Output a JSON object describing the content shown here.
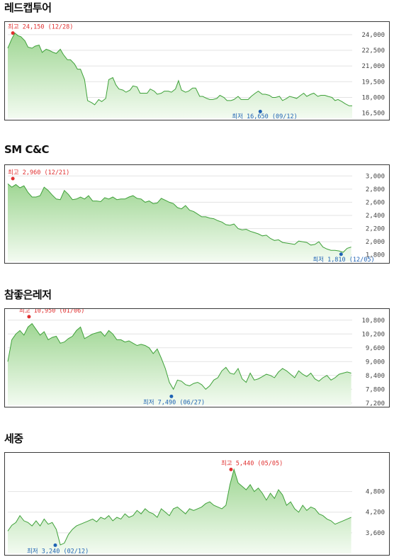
{
  "colors": {
    "line": "#3fa13a",
    "fill_top": "#9fd693",
    "fill_bottom": "#f3fbf1",
    "grid": "#e3e3e3",
    "high": "#e03131",
    "low": "#1f63b4"
  },
  "chart_data": [
    {
      "type": "area",
      "title": "레드캡투어",
      "yticks": [
        24000,
        22500,
        21000,
        19500,
        18000,
        16500
      ],
      "ylim": [
        16000,
        24800
      ],
      "grid": true,
      "high_label": "최고 24,150 (12/28)",
      "high": {
        "x": 5,
        "y": 24150
      },
      "low_label": "최저 16,650 (09/12)",
      "low": {
        "x": 250,
        "y": 16650
      },
      "x": [
        0,
        4,
        7,
        10,
        13,
        17,
        20,
        24,
        27,
        31,
        34,
        38,
        41,
        45,
        48,
        52,
        55,
        59,
        62,
        66,
        69,
        72,
        76,
        79,
        83,
        86,
        90,
        93,
        97,
        100,
        104,
        107,
        110,
        114,
        117,
        121,
        124,
        128,
        131,
        135,
        138,
        141,
        145,
        148,
        152,
        155,
        159,
        162,
        166,
        169,
        172,
        176,
        179,
        183,
        186,
        190,
        193,
        197,
        200,
        203,
        207,
        210,
        214,
        217,
        221,
        224,
        228,
        231,
        234,
        238,
        241,
        245,
        248,
        252,
        255,
        259,
        262,
        265,
        269,
        272,
        276,
        279,
        283,
        286,
        290,
        293,
        296,
        300,
        303,
        307,
        310,
        314,
        317,
        321,
        324,
        327,
        331,
        334,
        338,
        341
      ],
      "y": [
        22700,
        23600,
        24150,
        23900,
        23800,
        23400,
        22800,
        22700,
        22900,
        23000,
        22300,
        22600,
        22500,
        22300,
        22200,
        22600,
        22100,
        21600,
        21600,
        21200,
        20700,
        20700,
        19700,
        17700,
        17500,
        17300,
        17800,
        17600,
        17900,
        19700,
        19900,
        19200,
        18800,
        18700,
        18500,
        18700,
        19100,
        19000,
        18400,
        18400,
        18400,
        18800,
        18600,
        18300,
        18400,
        18600,
        18600,
        18500,
        18800,
        19600,
        18700,
        18500,
        18600,
        18900,
        18900,
        18100,
        18100,
        17900,
        17800,
        17800,
        17900,
        18200,
        18000,
        17700,
        17700,
        17800,
        18100,
        17800,
        17800,
        17800,
        18100,
        18400,
        18600,
        18300,
        18300,
        18200,
        18000,
        18000,
        18100,
        17700,
        17900,
        18100,
        18000,
        17900,
        18200,
        18400,
        18100,
        18300,
        18400,
        18100,
        18200,
        18200,
        18100,
        18000,
        17700,
        17800,
        17600,
        17400,
        17200,
        17200
      ]
    },
    {
      "type": "area",
      "title": "SM C&C",
      "yticks": [
        3000,
        2800,
        2600,
        2400,
        2200,
        2000,
        1800
      ],
      "ylim": [
        1700,
        3100
      ],
      "grid": true,
      "high_label": "최고 2,960 (12/21)",
      "high": {
        "x": 5,
        "y": 2960
      },
      "low_label": "최저 1,810 (12/05)",
      "low": {
        "x": 330,
        "y": 1810
      },
      "x": [
        0,
        4,
        8,
        12,
        16,
        20,
        24,
        28,
        32,
        36,
        40,
        44,
        48,
        52,
        56,
        60,
        64,
        68,
        72,
        76,
        80,
        84,
        88,
        92,
        96,
        100,
        104,
        108,
        112,
        116,
        120,
        124,
        128,
        132,
        136,
        140,
        144,
        148,
        152,
        156,
        160,
        164,
        168,
        172,
        176,
        180,
        184,
        188,
        192,
        196,
        200,
        204,
        208,
        212,
        216,
        220,
        224,
        228,
        232,
        236,
        240,
        244,
        248,
        252,
        256,
        260,
        264,
        268,
        272,
        276,
        280,
        284,
        288,
        292,
        296,
        300,
        304,
        308,
        312,
        316,
        320,
        324,
        328,
        332,
        336,
        340
      ],
      "y": [
        2880,
        2830,
        2870,
        2820,
        2850,
        2750,
        2680,
        2680,
        2700,
        2830,
        2780,
        2710,
        2650,
        2640,
        2780,
        2720,
        2640,
        2650,
        2680,
        2650,
        2700,
        2620,
        2620,
        2610,
        2670,
        2650,
        2680,
        2640,
        2650,
        2650,
        2680,
        2700,
        2660,
        2650,
        2600,
        2620,
        2580,
        2590,
        2660,
        2630,
        2600,
        2580,
        2520,
        2500,
        2550,
        2480,
        2460,
        2420,
        2380,
        2380,
        2360,
        2350,
        2320,
        2300,
        2260,
        2250,
        2270,
        2200,
        2180,
        2190,
        2160,
        2140,
        2120,
        2090,
        2100,
        2050,
        2020,
        2030,
        1990,
        1980,
        1970,
        1960,
        2010,
        2000,
        1990,
        1950,
        1960,
        2000,
        1920,
        1890,
        1870,
        1870,
        1860,
        1840,
        1900,
        1920
      ]
    },
    {
      "type": "area",
      "title": "참좋은레저",
      "yticks": [
        10800,
        10200,
        9600,
        9000,
        8400,
        7800,
        7200
      ],
      "ylim": [
        7100,
        11100
      ],
      "grid": true,
      "high_label": "최고 10,950 (01/06)",
      "high": {
        "x": 21,
        "y": 10950
      },
      "low_label": "최저 7,490 (06/27)",
      "low": {
        "x": 162,
        "y": 7490
      },
      "x": [
        0,
        4,
        8,
        12,
        16,
        20,
        24,
        28,
        32,
        36,
        40,
        44,
        48,
        52,
        56,
        60,
        64,
        68,
        72,
        76,
        80,
        84,
        88,
        92,
        96,
        100,
        104,
        108,
        112,
        116,
        120,
        124,
        128,
        132,
        136,
        140,
        144,
        148,
        152,
        156,
        160,
        164,
        168,
        172,
        176,
        180,
        184,
        188,
        192,
        196,
        200,
        204,
        208,
        212,
        216,
        220,
        224,
        228,
        232,
        236,
        240,
        244,
        248,
        252,
        256,
        260,
        264,
        268,
        272,
        276,
        280,
        284,
        288,
        292,
        296,
        300,
        304,
        308,
        312,
        316,
        320,
        324,
        328,
        332,
        336,
        340
      ],
      "y": [
        9000,
        9950,
        10200,
        10350,
        10150,
        10500,
        10650,
        10400,
        10150,
        10300,
        9950,
        10050,
        10100,
        9800,
        9850,
        10000,
        10100,
        10350,
        10500,
        10000,
        10100,
        10200,
        10250,
        10300,
        10100,
        10350,
        10200,
        9950,
        9950,
        9850,
        9900,
        9800,
        9700,
        9750,
        9700,
        9600,
        9350,
        9550,
        9150,
        8700,
        8100,
        7800,
        8200,
        8150,
        8000,
        7950,
        8050,
        8100,
        8000,
        7800,
        7950,
        8200,
        8300,
        8600,
        8750,
        8500,
        8450,
        8700,
        8250,
        8100,
        8500,
        8200,
        8250,
        8350,
        8450,
        8400,
        8300,
        8550,
        8700,
        8600,
        8450,
        8300,
        8600,
        8450,
        8350,
        8500,
        8250,
        8150,
        8300,
        8400,
        8200,
        8300,
        8450,
        8500,
        8550,
        8500
      ]
    },
    {
      "type": "area",
      "title": "세중",
      "yticks": [
        4800,
        4200,
        3600
      ],
      "ylim": [
        3000,
        5800
      ],
      "grid": true,
      "high_label": "최고 5,440 (05/05)",
      "high": {
        "x": 221,
        "y": 5440
      },
      "low_label": "최저 3,240 (02/12)",
      "low": {
        "x": 47,
        "y": 3240
      },
      "x": [
        0,
        4,
        8,
        12,
        16,
        20,
        24,
        28,
        32,
        36,
        40,
        44,
        48,
        52,
        56,
        60,
        64,
        68,
        72,
        76,
        80,
        84,
        88,
        92,
        96,
        100,
        104,
        108,
        112,
        116,
        120,
        124,
        128,
        132,
        136,
        140,
        144,
        148,
        152,
        156,
        160,
        164,
        168,
        172,
        176,
        180,
        184,
        188,
        192,
        196,
        200,
        204,
        208,
        212,
        216,
        220,
        224,
        228,
        232,
        236,
        240,
        244,
        248,
        252,
        256,
        260,
        264,
        268,
        272,
        276,
        280,
        284,
        288,
        292,
        296,
        300,
        304,
        308,
        312,
        316,
        320,
        324,
        328,
        332,
        336,
        340
      ],
      "y": [
        3650,
        3820,
        3900,
        4100,
        3950,
        3900,
        3800,
        3950,
        3800,
        4000,
        3850,
        3900,
        3700,
        3250,
        3300,
        3550,
        3700,
        3800,
        3850,
        3900,
        3950,
        4000,
        3920,
        4050,
        4000,
        4100,
        3950,
        4050,
        4000,
        4150,
        4050,
        4100,
        4250,
        4150,
        4300,
        4200,
        4150,
        4050,
        4300,
        4200,
        4100,
        4300,
        4350,
        4250,
        4150,
        4300,
        4250,
        4300,
        4350,
        4450,
        4500,
        4400,
        4350,
        4300,
        4400,
        5000,
        5440,
        5050,
        4950,
        4850,
        5000,
        4800,
        4900,
        4750,
        4550,
        4750,
        4600,
        4850,
        4700,
        4400,
        4500,
        4300,
        4200,
        4400,
        4250,
        4350,
        4300,
        4150,
        4100,
        4000,
        3950,
        3850,
        3900,
        3950,
        4000,
        4050
      ]
    }
  ]
}
